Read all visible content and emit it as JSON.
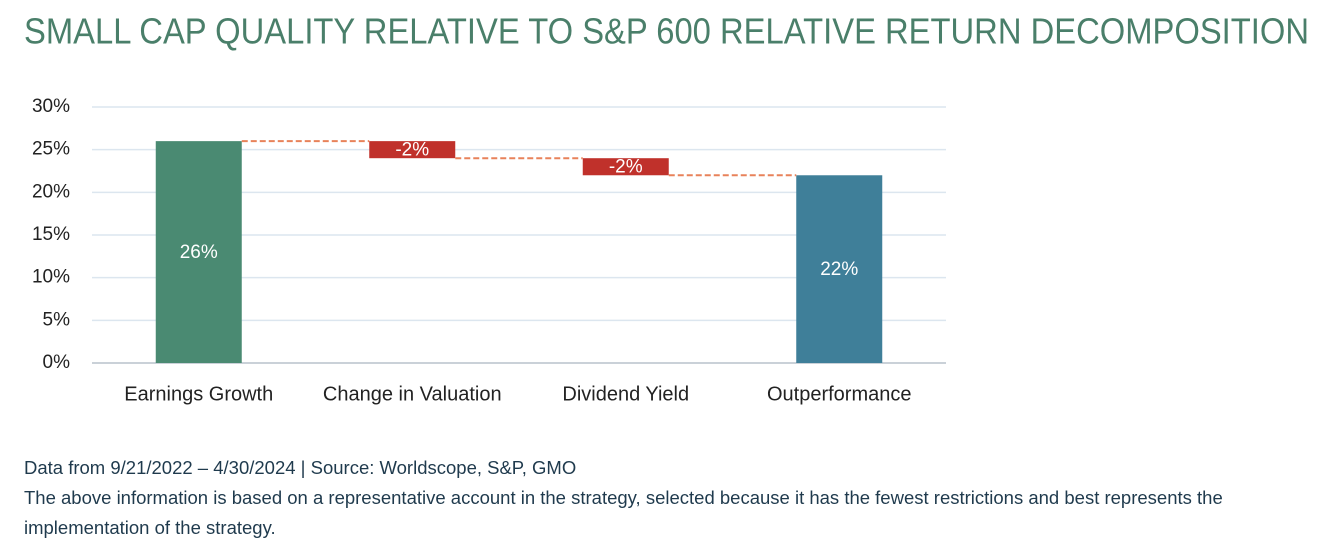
{
  "chart_data": {
    "type": "waterfall",
    "title": "SMALL CAP QUALITY RELATIVE TO S&P 600 RELATIVE RETURN DECOMPOSITION",
    "categories": [
      "Earnings Growth",
      "Change in Valuation",
      "Dividend Yield",
      "Outperformance"
    ],
    "values": [
      26,
      -2,
      -2,
      22
    ],
    "value_labels": [
      "26%",
      "-2%",
      "-2%",
      "22%"
    ],
    "colors": [
      "#4a8a72",
      "#c0312b",
      "#c0312b",
      "#3f7f99"
    ],
    "connector_color": "#e8825a",
    "ylim": [
      0,
      30
    ],
    "yticks": [
      {
        "value": 0,
        "label": "0%"
      },
      {
        "value": 5,
        "label": "5%"
      },
      {
        "value": 10,
        "label": "10%"
      },
      {
        "value": 15,
        "label": "15%"
      },
      {
        "value": 20,
        "label": "20%"
      },
      {
        "value": 25,
        "label": "25%"
      },
      {
        "value": 30,
        "label": "30%"
      }
    ],
    "grid": true
  },
  "footer": {
    "source": "Data from 9/21/2022 – 4/30/2024 | Source: Worldscope, S&P, GMO",
    "note": "The above information is based on a representative account in the strategy, selected because it has the fewest restrictions and best represents the implementation of the strategy."
  }
}
